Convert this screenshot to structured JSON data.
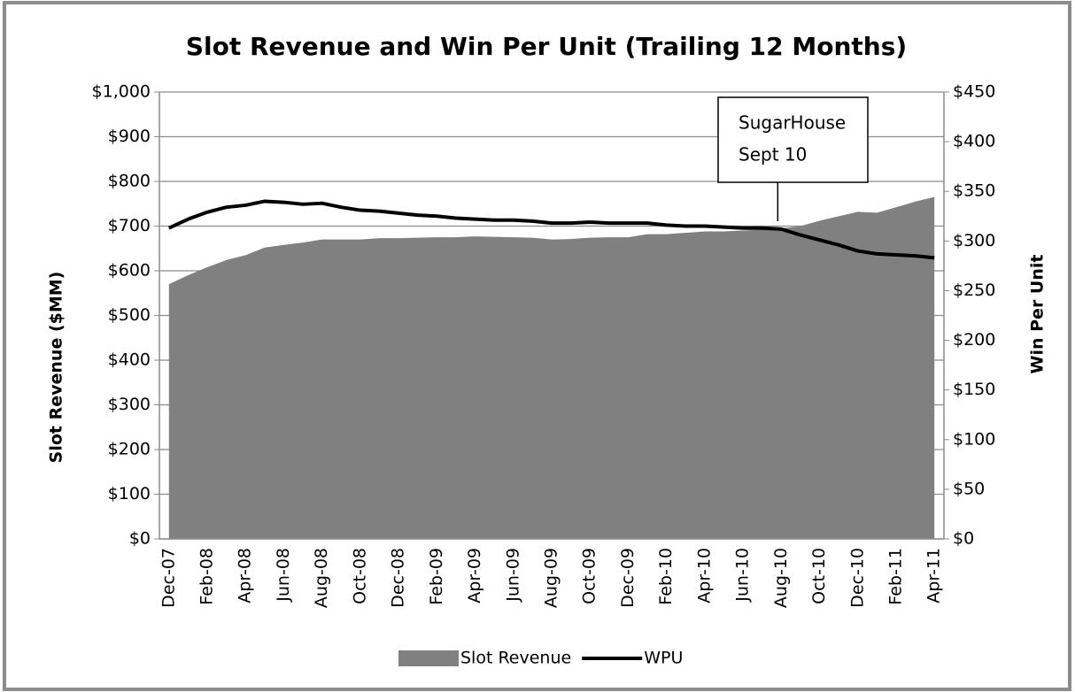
{
  "chart_data": {
    "type": "combo",
    "title": "Slot Revenue and Win Per Unit (Trailing 12 Months)",
    "y_label": "Slot Revenue ($MM)",
    "y2_label": "Win Per Unit",
    "categories": [
      "Dec-07",
      null,
      "Feb-08",
      null,
      "Apr-08",
      null,
      "Jun-08",
      null,
      "Aug-08",
      null,
      "Oct-08",
      null,
      "Dec-08",
      null,
      "Feb-09",
      null,
      "Apr-09",
      null,
      "Jun-09",
      null,
      "Aug-09",
      null,
      "Oct-09",
      null,
      "Dec-09",
      null,
      "Feb-10",
      null,
      "Apr-10",
      null,
      "Jun-10",
      null,
      "Aug-10",
      null,
      "Oct-10",
      null,
      "Dec-10",
      null,
      "Feb-11",
      null,
      "Apr-11"
    ],
    "series": [
      {
        "name": "Slot Revenue",
        "type": "area",
        "color": "#808080",
        "values": [
          570,
          590,
          608,
          624,
          635,
          652,
          658,
          663,
          670,
          670,
          670,
          673,
          673,
          674,
          675,
          675,
          677,
          676,
          675,
          674,
          670,
          671,
          674,
          675,
          675,
          682,
          682,
          685,
          688,
          688,
          690,
          692,
          695,
          700,
          712,
          722,
          732,
          730,
          742,
          755,
          765
        ]
      },
      {
        "name": "WPU",
        "type": "line",
        "color": "#000000",
        "axis": "y2",
        "values": [
          313,
          322,
          329,
          334,
          336,
          340,
          339,
          337,
          338,
          334,
          331,
          330,
          328,
          326,
          325,
          323,
          322,
          321,
          321,
          320,
          318,
          318,
          319,
          318,
          318,
          318,
          316,
          315,
          315,
          314,
          313,
          313,
          312,
          306,
          301,
          296,
          290,
          287,
          286,
          285,
          283
        ]
      }
    ],
    "ylim": [
      0,
      1000
    ],
    "yticks": [
      {
        "value": 0,
        "label": "$0"
      },
      {
        "value": 100,
        "label": "$100"
      },
      {
        "value": 200,
        "label": "$200"
      },
      {
        "value": 300,
        "label": "$300"
      },
      {
        "value": 400,
        "label": "$400"
      },
      {
        "value": 500,
        "label": "$500"
      },
      {
        "value": 600,
        "label": "$600"
      },
      {
        "value": 700,
        "label": "$700"
      },
      {
        "value": 800,
        "label": "$800"
      },
      {
        "value": 900,
        "label": "$900"
      },
      {
        "value": 1000,
        "label": "$1,000"
      }
    ],
    "y2lim": [
      0,
      450
    ],
    "y2ticks": [
      {
        "value": 0,
        "label": "$0"
      },
      {
        "value": 50,
        "label": "$50"
      },
      {
        "value": 100,
        "label": "$100"
      },
      {
        "value": 150,
        "label": "$150"
      },
      {
        "value": 200,
        "label": "$200"
      },
      {
        "value": 250,
        "label": "$250"
      },
      {
        "value": 300,
        "label": "$300"
      },
      {
        "value": 350,
        "label": "$350"
      },
      {
        "value": 400,
        "label": "$400"
      },
      {
        "value": 450,
        "label": "$450"
      }
    ],
    "grid": true,
    "legend": "bottom",
    "annotation": {
      "lines": [
        "SugarHouse",
        "Sept 10"
      ]
    }
  }
}
